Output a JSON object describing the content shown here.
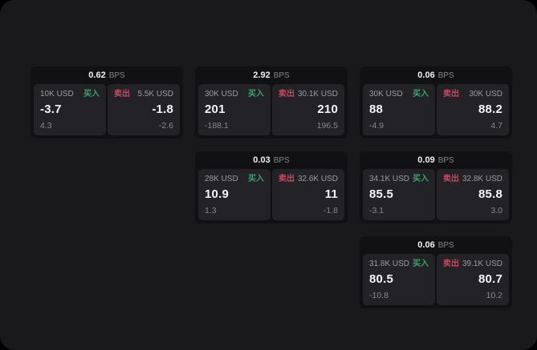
{
  "labels": {
    "buy": "买入",
    "sell": "卖出",
    "bps": "BPS"
  },
  "colors": {
    "buy_green": "#36a46c",
    "sell_red": "#c9485f",
    "page_bg": "#19191b",
    "card_bg": "#111113",
    "panel_bg": "#232327"
  },
  "cards": [
    {
      "bps": "0.62",
      "buy": {
        "size": "10K USD",
        "value": "-3.7",
        "change": "4.3"
      },
      "sell": {
        "size": "5.5K USD",
        "value": "-1.8",
        "change": "-2.6"
      }
    },
    {
      "bps": "2.92",
      "buy": {
        "size": "30K USD",
        "value": "201",
        "change": "-188.1"
      },
      "sell": {
        "size": "30.1K USD",
        "value": "210",
        "change": "196.5"
      }
    },
    {
      "bps": "0.06",
      "buy": {
        "size": "30K USD",
        "value": "88",
        "change": "-4.9"
      },
      "sell": {
        "size": "30K USD",
        "value": "88.2",
        "change": "4.7"
      }
    },
    {
      "bps": "0.03",
      "buy": {
        "size": "28K USD",
        "value": "10.9",
        "change": "1.3"
      },
      "sell": {
        "size": "32.6K USD",
        "value": "11",
        "change": "-1.8"
      }
    },
    {
      "bps": "0.09",
      "buy": {
        "size": "34.1K USD",
        "value": "85.5",
        "change": "-3.1"
      },
      "sell": {
        "size": "32.8K USD",
        "value": "85.8",
        "change": "3.0"
      }
    },
    {
      "bps": "0.06",
      "buy": {
        "size": "31.8K USD",
        "value": "80.5",
        "change": "-10.8"
      },
      "sell": {
        "size": "39.1K USD",
        "value": "80.7",
        "change": "10.2"
      }
    }
  ]
}
